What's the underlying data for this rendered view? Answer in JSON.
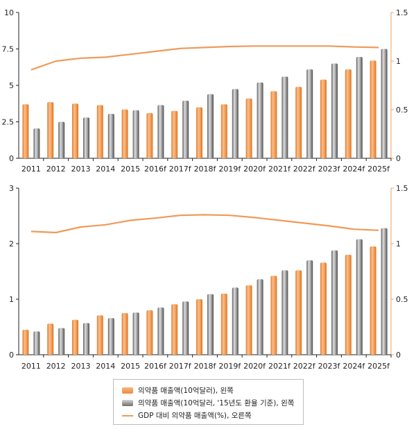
{
  "chart_data": [
    {
      "type": "bar",
      "categories": [
        "2011",
        "2012",
        "2013",
        "2014",
        "2015",
        "2016f",
        "2017f",
        "2018f",
        "2019f",
        "2020f",
        "2021f",
        "2022f",
        "2023f",
        "2024f",
        "2025f"
      ],
      "series": [
        {
          "name": "의약품 매출액(10억달러), 왼쪽",
          "axis": "left",
          "kind": "bar",
          "color": "#f0954a",
          "values": [
            3.7,
            3.85,
            3.75,
            3.65,
            3.35,
            3.1,
            3.25,
            3.5,
            3.7,
            4.1,
            4.6,
            4.9,
            5.4,
            6.1,
            6.7
          ]
        },
        {
          "name": "의약품 매출액(10억달러, '15년도 환율 기준), 왼쪽",
          "axis": "left",
          "kind": "bar",
          "color": "#8a8a8a",
          "values": [
            2.05,
            2.5,
            2.8,
            3.05,
            3.3,
            3.65,
            3.95,
            4.4,
            4.75,
            5.2,
            5.6,
            6.1,
            6.5,
            6.95,
            7.5
          ]
        },
        {
          "name": "GDP 대비 의약품 매출액(%), 오른쪽",
          "axis": "right",
          "kind": "line",
          "color": "#ef9a58",
          "values": [
            0.91,
            1.0,
            1.03,
            1.04,
            1.07,
            1.1,
            1.13,
            1.14,
            1.15,
            1.155,
            1.155,
            1.155,
            1.155,
            1.145,
            1.14
          ]
        }
      ],
      "left_axis": {
        "ylim": [
          0,
          10
        ],
        "ticks": [
          "0",
          "2.5",
          "5",
          "7.5",
          "10"
        ]
      },
      "right_axis": {
        "ylim": [
          0,
          1.5
        ],
        "ticks": [
          "0",
          "0.5",
          "1",
          "1.5"
        ]
      }
    },
    {
      "type": "bar",
      "categories": [
        "2011",
        "2012",
        "2013",
        "2014",
        "2015",
        "2016f",
        "2017f",
        "2018f",
        "2019f",
        "2020f",
        "2021f",
        "2022f",
        "2023f",
        "2024f",
        "2025f"
      ],
      "series": [
        {
          "name": "의약품 매출액(10억달러), 왼쪽",
          "axis": "left",
          "kind": "bar",
          "color": "#f0954a",
          "values": [
            0.45,
            0.56,
            0.63,
            0.71,
            0.75,
            0.8,
            0.91,
            1.0,
            1.1,
            1.25,
            1.42,
            1.52,
            1.66,
            1.8,
            1.95
          ]
        },
        {
          "name": "의약품 매출액(10억달러, '15년도 환율 기준), 왼쪽",
          "axis": "left",
          "kind": "bar",
          "color": "#8a8a8a",
          "values": [
            0.42,
            0.48,
            0.57,
            0.66,
            0.76,
            0.85,
            0.96,
            1.09,
            1.21,
            1.36,
            1.52,
            1.7,
            1.88,
            2.08,
            2.28
          ]
        },
        {
          "name": "GDP 대비 의약품 매출액(%), 오른쪽",
          "axis": "right",
          "kind": "line",
          "color": "#ef9a58",
          "values": [
            1.11,
            1.1,
            1.15,
            1.17,
            1.21,
            1.23,
            1.255,
            1.26,
            1.255,
            1.235,
            1.21,
            1.185,
            1.16,
            1.13,
            1.12
          ]
        }
      ],
      "left_axis": {
        "ylim": [
          0,
          3
        ],
        "ticks": [
          "0",
          "1",
          "2",
          "3"
        ]
      },
      "right_axis": {
        "ylim": [
          0,
          1.5
        ],
        "ticks": [
          "0",
          "0.5",
          "1",
          "1.5"
        ]
      }
    }
  ],
  "legend": {
    "items": [
      {
        "label": "의약품 매출액(10억달러), 왼쪽",
        "kind": "orange-bar"
      },
      {
        "label": "의약품 매출액(10억달러, '15년도 환율 기준), 왼쪽",
        "kind": "gray-bar"
      },
      {
        "label": "GDP 대비 의약품 매출액(%), 오른쪽",
        "kind": "line"
      }
    ]
  }
}
